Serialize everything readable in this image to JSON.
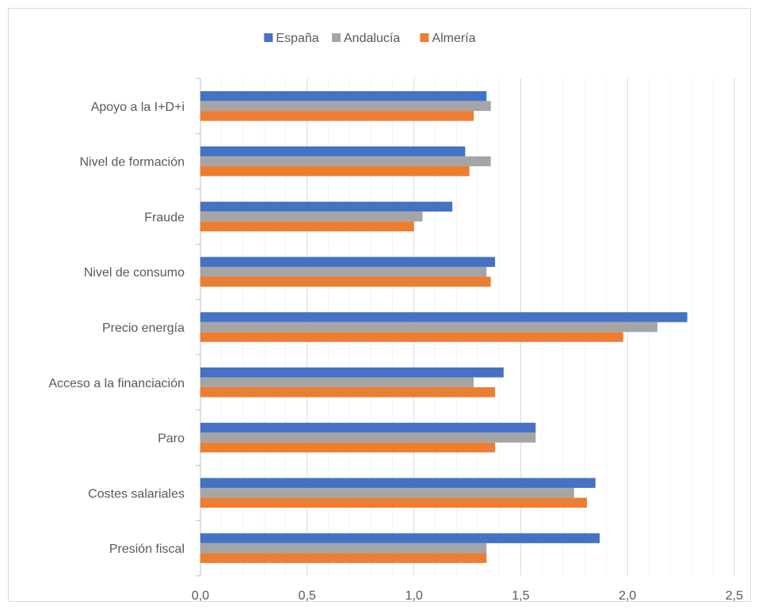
{
  "chart_data": {
    "type": "bar",
    "orientation": "horizontal",
    "title": "",
    "xlabel": "",
    "ylabel": "",
    "categories": [
      "Apoyo a la I+D+i",
      "Nivel de formación",
      "Fraude",
      "Nivel de consumo",
      "Precio energía",
      "Acceso a la financiación",
      "Paro",
      "Costes salariales",
      "Presión fiscal"
    ],
    "series": [
      {
        "name": "España",
        "color": "#4472c4",
        "values": [
          1.34,
          1.24,
          1.18,
          1.38,
          2.28,
          1.42,
          1.57,
          1.85,
          1.87
        ]
      },
      {
        "name": "Andalucía",
        "color": "#a5a5a5",
        "values": [
          1.36,
          1.36,
          1.04,
          1.34,
          2.14,
          1.28,
          1.57,
          1.75,
          1.34
        ]
      },
      {
        "name": "Almería",
        "color": "#ed7d31",
        "values": [
          1.28,
          1.26,
          1.0,
          1.36,
          1.98,
          1.38,
          1.38,
          1.81,
          1.34
        ]
      }
    ],
    "xlim": [
      0,
      2.5
    ],
    "x_ticks": [
      "0,0",
      "0,5",
      "1,0",
      "1,5",
      "2,0",
      "2,5"
    ],
    "x_tick_values": [
      0,
      0.5,
      1.0,
      1.5,
      2.0,
      2.5
    ],
    "minor_gridline_step": 0.1,
    "grid": true,
    "legend_position": "top"
  }
}
